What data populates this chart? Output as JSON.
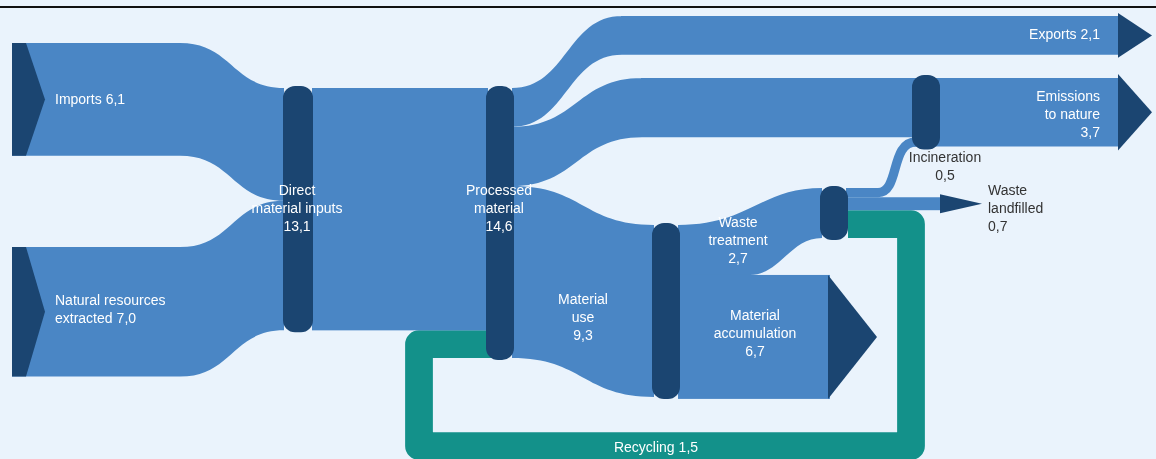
{
  "chart_data": {
    "type": "other",
    "categories": [
      "Imports",
      "Natural resources extracted",
      "Direct material inputs",
      "Processed material",
      "Exports",
      "Emissions to nature",
      "Material use",
      "Waste treatment",
      "Material accumulation",
      "Incineration",
      "Waste landfilled",
      "Recycling"
    ],
    "values": [
      6.1,
      7.0,
      13.1,
      14.6,
      2.1,
      3.7,
      9.3,
      2.7,
      6.7,
      0.5,
      0.7,
      1.5
    ],
    "value_labels": [
      "6,1",
      "7,0",
      "13,1",
      "14,6",
      "2,1",
      "3,7",
      "9,3",
      "2,7",
      "6,7",
      "0,5",
      "0,7",
      "1,5"
    ],
    "color": "#4a86c5",
    "colors": [
      "#4a86c5",
      "#4a86c5",
      "#1b4571",
      "#1b4571",
      "#4a86c5",
      "#4a86c5",
      "#4a86c5",
      "#4a86c5",
      "#4a86c5",
      "#4a86c5",
      "#1b4571",
      "#13918a"
    ]
  }
}
